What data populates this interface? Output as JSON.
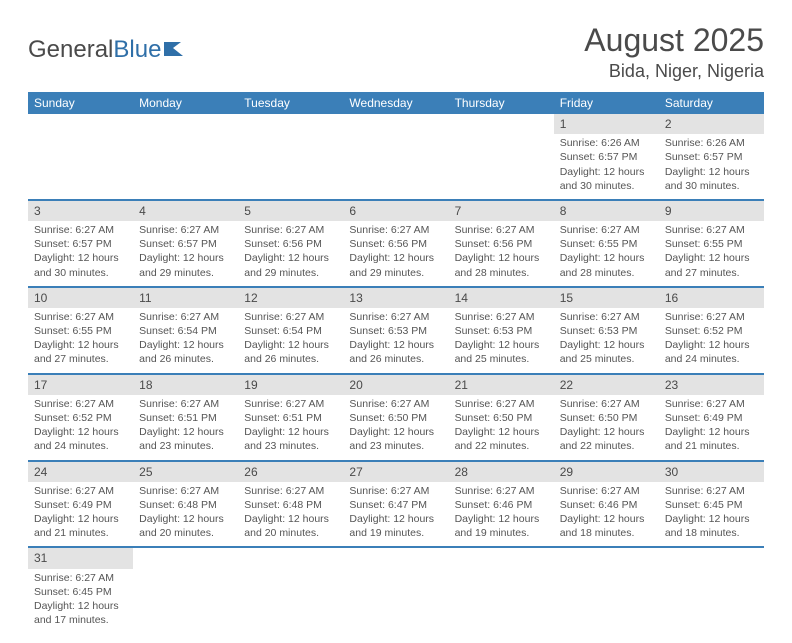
{
  "logo": {
    "text1": "General",
    "text2": "Blue",
    "logo_color": "#2f6fa8"
  },
  "title": "August 2025",
  "location": "Bida, Niger, Nigeria",
  "colors": {
    "header_bg": "#3b7fb8",
    "header_text": "#ffffff",
    "daynum_bg": "#e3e3e3",
    "border": "#3b7fb8",
    "text": "#4a4a4a"
  },
  "day_names": [
    "Sunday",
    "Monday",
    "Tuesday",
    "Wednesday",
    "Thursday",
    "Friday",
    "Saturday"
  ],
  "weeks": [
    [
      null,
      null,
      null,
      null,
      null,
      {
        "n": "1",
        "sr": "6:26 AM",
        "ss": "6:57 PM",
        "dl": "12 hours and 30 minutes."
      },
      {
        "n": "2",
        "sr": "6:26 AM",
        "ss": "6:57 PM",
        "dl": "12 hours and 30 minutes."
      }
    ],
    [
      {
        "n": "3",
        "sr": "6:27 AM",
        "ss": "6:57 PM",
        "dl": "12 hours and 30 minutes."
      },
      {
        "n": "4",
        "sr": "6:27 AM",
        "ss": "6:57 PM",
        "dl": "12 hours and 29 minutes."
      },
      {
        "n": "5",
        "sr": "6:27 AM",
        "ss": "6:56 PM",
        "dl": "12 hours and 29 minutes."
      },
      {
        "n": "6",
        "sr": "6:27 AM",
        "ss": "6:56 PM",
        "dl": "12 hours and 29 minutes."
      },
      {
        "n": "7",
        "sr": "6:27 AM",
        "ss": "6:56 PM",
        "dl": "12 hours and 28 minutes."
      },
      {
        "n": "8",
        "sr": "6:27 AM",
        "ss": "6:55 PM",
        "dl": "12 hours and 28 minutes."
      },
      {
        "n": "9",
        "sr": "6:27 AM",
        "ss": "6:55 PM",
        "dl": "12 hours and 27 minutes."
      }
    ],
    [
      {
        "n": "10",
        "sr": "6:27 AM",
        "ss": "6:55 PM",
        "dl": "12 hours and 27 minutes."
      },
      {
        "n": "11",
        "sr": "6:27 AM",
        "ss": "6:54 PM",
        "dl": "12 hours and 26 minutes."
      },
      {
        "n": "12",
        "sr": "6:27 AM",
        "ss": "6:54 PM",
        "dl": "12 hours and 26 minutes."
      },
      {
        "n": "13",
        "sr": "6:27 AM",
        "ss": "6:53 PM",
        "dl": "12 hours and 26 minutes."
      },
      {
        "n": "14",
        "sr": "6:27 AM",
        "ss": "6:53 PM",
        "dl": "12 hours and 25 minutes."
      },
      {
        "n": "15",
        "sr": "6:27 AM",
        "ss": "6:53 PM",
        "dl": "12 hours and 25 minutes."
      },
      {
        "n": "16",
        "sr": "6:27 AM",
        "ss": "6:52 PM",
        "dl": "12 hours and 24 minutes."
      }
    ],
    [
      {
        "n": "17",
        "sr": "6:27 AM",
        "ss": "6:52 PM",
        "dl": "12 hours and 24 minutes."
      },
      {
        "n": "18",
        "sr": "6:27 AM",
        "ss": "6:51 PM",
        "dl": "12 hours and 23 minutes."
      },
      {
        "n": "19",
        "sr": "6:27 AM",
        "ss": "6:51 PM",
        "dl": "12 hours and 23 minutes."
      },
      {
        "n": "20",
        "sr": "6:27 AM",
        "ss": "6:50 PM",
        "dl": "12 hours and 23 minutes."
      },
      {
        "n": "21",
        "sr": "6:27 AM",
        "ss": "6:50 PM",
        "dl": "12 hours and 22 minutes."
      },
      {
        "n": "22",
        "sr": "6:27 AM",
        "ss": "6:50 PM",
        "dl": "12 hours and 22 minutes."
      },
      {
        "n": "23",
        "sr": "6:27 AM",
        "ss": "6:49 PM",
        "dl": "12 hours and 21 minutes."
      }
    ],
    [
      {
        "n": "24",
        "sr": "6:27 AM",
        "ss": "6:49 PM",
        "dl": "12 hours and 21 minutes."
      },
      {
        "n": "25",
        "sr": "6:27 AM",
        "ss": "6:48 PM",
        "dl": "12 hours and 20 minutes."
      },
      {
        "n": "26",
        "sr": "6:27 AM",
        "ss": "6:48 PM",
        "dl": "12 hours and 20 minutes."
      },
      {
        "n": "27",
        "sr": "6:27 AM",
        "ss": "6:47 PM",
        "dl": "12 hours and 19 minutes."
      },
      {
        "n": "28",
        "sr": "6:27 AM",
        "ss": "6:46 PM",
        "dl": "12 hours and 19 minutes."
      },
      {
        "n": "29",
        "sr": "6:27 AM",
        "ss": "6:46 PM",
        "dl": "12 hours and 18 minutes."
      },
      {
        "n": "30",
        "sr": "6:27 AM",
        "ss": "6:45 PM",
        "dl": "12 hours and 18 minutes."
      }
    ],
    [
      {
        "n": "31",
        "sr": "6:27 AM",
        "ss": "6:45 PM",
        "dl": "12 hours and 17 minutes."
      },
      null,
      null,
      null,
      null,
      null,
      null
    ]
  ],
  "labels": {
    "sunrise_prefix": "Sunrise: ",
    "sunset_prefix": "Sunset: ",
    "daylight_prefix": "Daylight: "
  }
}
